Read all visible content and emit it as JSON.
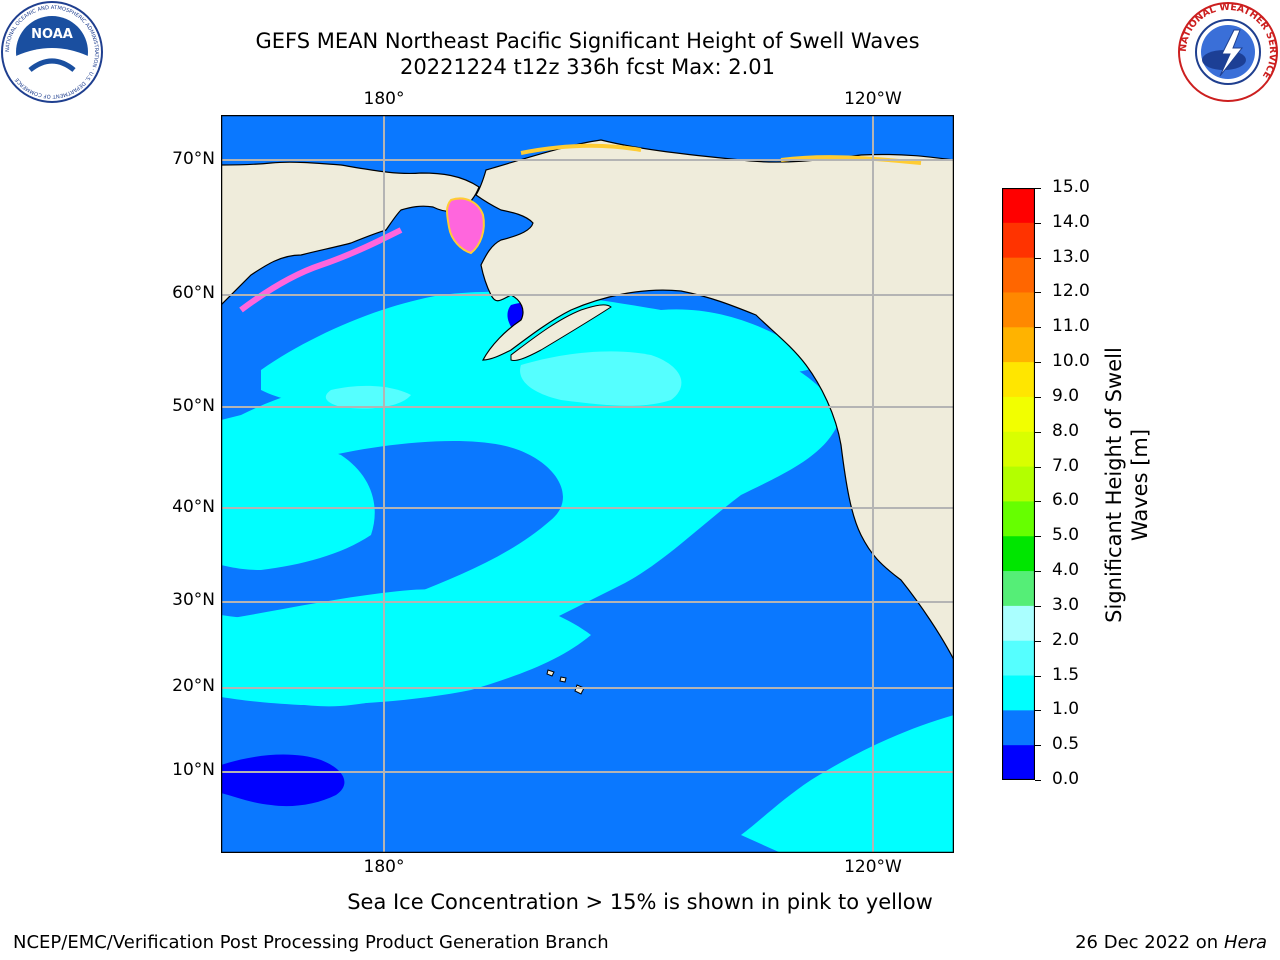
{
  "title_line1": "GEFS MEAN Northeast Pacific Significant Height of Swell Waves",
  "title_line2": "20221224 t12z 336h fcst   Max: 2.01",
  "lon_labels": [
    "180°",
    "120°W"
  ],
  "lat_labels": [
    "70°N",
    "60°N",
    "50°N",
    "40°N",
    "30°N",
    "20°N",
    "10°N"
  ],
  "colorbar": {
    "title_line1": "Significant Height of Swell",
    "title_line2": "Waves [m]",
    "ticks": [
      "15.0",
      "14.0",
      "13.0",
      "12.0",
      "11.0",
      "10.0",
      "9.0",
      "8.0",
      "7.0",
      "6.0",
      "5.0",
      "4.0",
      "3.0",
      "2.0",
      "1.5",
      "1.0",
      "0.5",
      "0.0"
    ],
    "colors": [
      "#ff0000",
      "#ff3300",
      "#ff6600",
      "#ff8800",
      "#ffb300",
      "#ffe600",
      "#f2ff00",
      "#d9ff00",
      "#b3ff00",
      "#66ff00",
      "#00e600",
      "#55ee77",
      "#aaffff",
      "#55ffff",
      "#00ffff",
      "#0a78ff",
      "#0000ff"
    ]
  },
  "colors": {
    "land": "#efecdb",
    "ocean_low": "#0a78ff",
    "ocean_mid": "#00ffff",
    "ocean_high": "#55ffff",
    "ocean_min": "#0000ff",
    "ice": "#ff66dd",
    "grid": "#b4b4b4"
  },
  "ice_note": "Sea Ice Concentration > 15% is shown in pink to yellow",
  "footer_left": "NCEP/EMC/Verification Post Processing Product Generation Branch",
  "footer_date": "26 Dec 2022 on",
  "footer_machine": "Hera",
  "logos": {
    "noaa": "NOAA",
    "noaa_ring": "NATIONAL OCEANIC AND ATMOSPHERIC ADMINISTRATION · U.S. DEPARTMENT OF COMMERCE",
    "nws_ring": "NATIONAL WEATHER SERVICE"
  }
}
